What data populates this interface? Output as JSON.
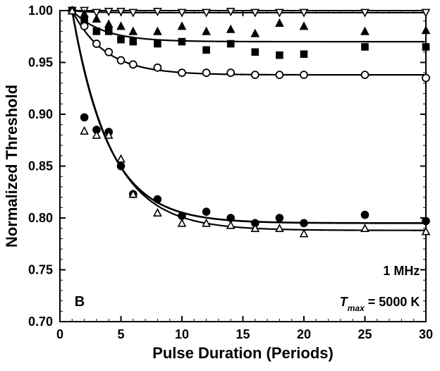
{
  "chart": {
    "type": "scatter+line",
    "background_color": "#ffffff",
    "axis_color": "#000000",
    "axis_line_width": 2,
    "tick_length": 8,
    "tick_label_fontsize": 18,
    "axis_label_fontsize": 22,
    "xlabel": "Pulse Duration (Periods)",
    "ylabel": "Normalized Threshold",
    "xlim": [
      0,
      30
    ],
    "ylim": [
      0.7,
      1.0
    ],
    "xticks": [
      0,
      5,
      10,
      15,
      20,
      25,
      30
    ],
    "yticks": [
      0.7,
      0.75,
      0.8,
      0.85,
      0.9,
      0.95,
      1.0
    ],
    "y_decimals": 2,
    "x_minor_step": 1,
    "y_minor_step": 0.01,
    "annotations": {
      "panel_letter": "B",
      "freq_text": "1 MHz",
      "tmax_text_prefix": "T",
      "tmax_text_sub": "max",
      "tmax_text_suffix": " = 5000 K"
    },
    "series": [
      {
        "name": "open-down-triangle",
        "marker": "triangle-down",
        "filled": false,
        "marker_size": 10,
        "stroke_width": 1.6,
        "color": "#000000",
        "points": [
          [
            1,
            1.0
          ],
          [
            2,
            1.0
          ],
          [
            3,
            0.998
          ],
          [
            4,
            0.999
          ],
          [
            5,
            0.999
          ],
          [
            6,
            0.998
          ],
          [
            8,
            0.999
          ],
          [
            10,
            0.998
          ],
          [
            12,
            0.998
          ],
          [
            14,
            0.999
          ],
          [
            16,
            0.998
          ],
          [
            18,
            0.998
          ],
          [
            20,
            0.998
          ],
          [
            25,
            0.998
          ],
          [
            30,
            0.998
          ]
        ]
      },
      {
        "name": "filled-up-triangle",
        "marker": "triangle-up",
        "filled": true,
        "marker_size": 10,
        "stroke_width": 1.6,
        "color": "#000000",
        "points": [
          [
            1,
            1.0
          ],
          [
            2,
            0.997
          ],
          [
            3,
            0.992
          ],
          [
            4,
            0.987
          ],
          [
            5,
            0.985
          ],
          [
            6,
            0.98
          ],
          [
            8,
            0.98
          ],
          [
            10,
            0.985
          ],
          [
            12,
            0.98
          ],
          [
            14,
            0.982
          ],
          [
            16,
            0.978
          ],
          [
            18,
            0.988
          ],
          [
            20,
            0.985
          ],
          [
            25,
            0.98
          ],
          [
            30,
            0.981
          ]
        ]
      },
      {
        "name": "filled-square",
        "marker": "square",
        "filled": true,
        "marker_size": 9,
        "stroke_width": 1.6,
        "color": "#000000",
        "points": [
          [
            1,
            1.0
          ],
          [
            2,
            0.99
          ],
          [
            3,
            0.98
          ],
          [
            4,
            0.98
          ],
          [
            5,
            0.972
          ],
          [
            6,
            0.97
          ],
          [
            8,
            0.968
          ],
          [
            10,
            0.97
          ],
          [
            12,
            0.962
          ],
          [
            14,
            0.968
          ],
          [
            16,
            0.96
          ],
          [
            18,
            0.957
          ],
          [
            20,
            0.958
          ],
          [
            25,
            0.965
          ],
          [
            30,
            0.965
          ]
        ]
      },
      {
        "name": "open-circle",
        "marker": "circle",
        "filled": false,
        "marker_size": 10,
        "stroke_width": 1.8,
        "color": "#000000",
        "points": [
          [
            1,
            1.0
          ],
          [
            2,
            0.985
          ],
          [
            3,
            0.968
          ],
          [
            4,
            0.96
          ],
          [
            5,
            0.952
          ],
          [
            6,
            0.948
          ],
          [
            8,
            0.945
          ],
          [
            10,
            0.94
          ],
          [
            12,
            0.94
          ],
          [
            14,
            0.94
          ],
          [
            16,
            0.938
          ],
          [
            18,
            0.938
          ],
          [
            20,
            0.938
          ],
          [
            25,
            0.938
          ],
          [
            30,
            0.935
          ]
        ]
      },
      {
        "name": "filled-circle",
        "marker": "circle",
        "filled": true,
        "marker_size": 10,
        "stroke_width": 1.6,
        "color": "#000000",
        "points": [
          [
            1,
            1.0
          ],
          [
            2,
            0.897
          ],
          [
            3,
            0.885
          ],
          [
            4,
            0.883
          ],
          [
            5,
            0.85
          ],
          [
            6,
            0.823
          ],
          [
            8,
            0.818
          ],
          [
            10,
            0.802
          ],
          [
            12,
            0.806
          ],
          [
            14,
            0.8
          ],
          [
            16,
            0.795
          ],
          [
            18,
            0.8
          ],
          [
            20,
            0.795
          ],
          [
            25,
            0.803
          ],
          [
            30,
            0.797
          ]
        ]
      },
      {
        "name": "open-up-triangle",
        "marker": "triangle-up",
        "filled": false,
        "marker_size": 10,
        "stroke_width": 1.6,
        "color": "#000000",
        "points": [
          [
            1,
            1.0
          ],
          [
            2,
            0.884
          ],
          [
            3,
            0.88
          ],
          [
            4,
            0.88
          ],
          [
            5,
            0.857
          ],
          [
            6,
            0.823
          ],
          [
            8,
            0.805
          ],
          [
            10,
            0.795
          ],
          [
            12,
            0.795
          ],
          [
            14,
            0.793
          ],
          [
            16,
            0.79
          ],
          [
            18,
            0.79
          ],
          [
            20,
            0.785
          ],
          [
            25,
            0.79
          ],
          [
            30,
            0.787
          ]
        ]
      }
    ],
    "fit_curves": [
      {
        "name": "fit-top1",
        "color": "#000000",
        "width": 2.2,
        "y0": 0.998,
        "A": 0.002,
        "tau": 1.5
      },
      {
        "name": "fit-top2",
        "color": "#000000",
        "width": 2.2,
        "y0": 0.97,
        "A": 0.03,
        "tau": 2.5
      },
      {
        "name": "fit-top3",
        "color": "#000000",
        "width": 2.2,
        "y0": 0.938,
        "A": 0.062,
        "tau": 2.7
      },
      {
        "name": "fit-bot1",
        "color": "#000000",
        "width": 2.6,
        "y0": 0.795,
        "A": 0.205,
        "tau": 3.0
      },
      {
        "name": "fit-bot2",
        "color": "#000000",
        "width": 2.2,
        "y0": 0.788,
        "A": 0.212,
        "tau": 3.2
      }
    ]
  }
}
